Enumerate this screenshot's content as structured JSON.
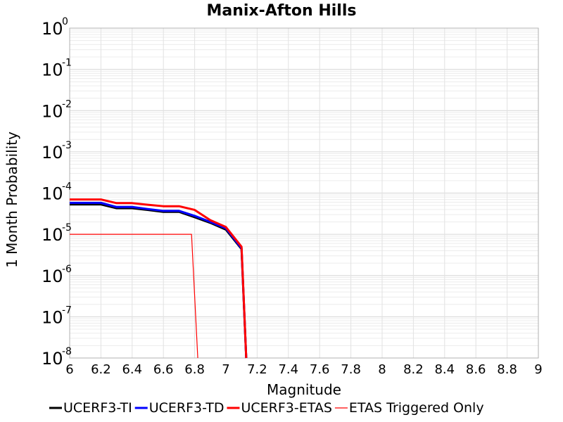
{
  "chart_data": {
    "type": "line",
    "title": "Manix-Afton Hills",
    "xlabel": "Magnitude",
    "ylabel": "1 Month Probability",
    "xlim": [
      6,
      9
    ],
    "ylim": [
      1e-08,
      1
    ],
    "yscale": "log",
    "grid": true,
    "legend_position": "bottom",
    "x_ticks": [
      "6",
      "6.2",
      "6.4",
      "6.6",
      "6.8",
      "7",
      "7.2",
      "7.4",
      "7.6",
      "7.8",
      "8",
      "8.2",
      "8.4",
      "8.6",
      "8.8",
      "9"
    ],
    "y_ticks": [
      {
        "base": "10",
        "exp": "0"
      },
      {
        "base": "10",
        "exp": "-1"
      },
      {
        "base": "10",
        "exp": "-2"
      },
      {
        "base": "10",
        "exp": "-3"
      },
      {
        "base": "10",
        "exp": "-4"
      },
      {
        "base": "10",
        "exp": "-5"
      },
      {
        "base": "10",
        "exp": "-6"
      },
      {
        "base": "10",
        "exp": "-7"
      },
      {
        "base": "10",
        "exp": "-8"
      }
    ],
    "series": [
      {
        "name": "UCERF3-TI",
        "color": "#000000",
        "style": "thick",
        "x": [
          6.0,
          6.1,
          6.2,
          6.3,
          6.4,
          6.5,
          6.6,
          6.7,
          6.8,
          6.9,
          7.0,
          7.1,
          7.13
        ],
        "y": [
          5.3e-05,
          5.3e-05,
          5.3e-05,
          4.3e-05,
          4.3e-05,
          3.9e-05,
          3.5e-05,
          3.5e-05,
          2.6e-05,
          1.9e-05,
          1.3e-05,
          4.4e-06,
          1e-08
        ]
      },
      {
        "name": "UCERF3-TD",
        "color": "#0000ff",
        "style": "thick",
        "x": [
          6.0,
          6.1,
          6.2,
          6.3,
          6.4,
          6.5,
          6.6,
          6.7,
          6.8,
          6.9,
          7.0,
          7.1,
          7.13
        ],
        "y": [
          5.8e-05,
          5.8e-05,
          5.8e-05,
          4.6e-05,
          4.6e-05,
          4.1e-05,
          3.7e-05,
          3.7e-05,
          2.8e-05,
          2e-05,
          1.4e-05,
          4.6e-06,
          1e-08
        ]
      },
      {
        "name": "UCERF3-ETAS",
        "color": "#ff0000",
        "style": "thick",
        "x": [
          6.0,
          6.1,
          6.2,
          6.3,
          6.4,
          6.5,
          6.6,
          6.7,
          6.8,
          6.9,
          7.0,
          7.1,
          7.13
        ],
        "y": [
          7e-05,
          7e-05,
          7e-05,
          5.7e-05,
          5.7e-05,
          5.2e-05,
          4.8e-05,
          4.8e-05,
          3.9e-05,
          2.2e-05,
          1.5e-05,
          5e-06,
          1e-08
        ]
      },
      {
        "name": "ETAS Triggered Only",
        "color": "#ff0000",
        "style": "thin",
        "x": [
          6.0,
          6.1,
          6.2,
          6.3,
          6.4,
          6.5,
          6.6,
          6.7,
          6.78,
          6.82
        ],
        "y": [
          1e-05,
          1e-05,
          1e-05,
          1e-05,
          1e-05,
          1e-05,
          1e-05,
          1e-05,
          1e-05,
          1e-08
        ]
      }
    ]
  }
}
